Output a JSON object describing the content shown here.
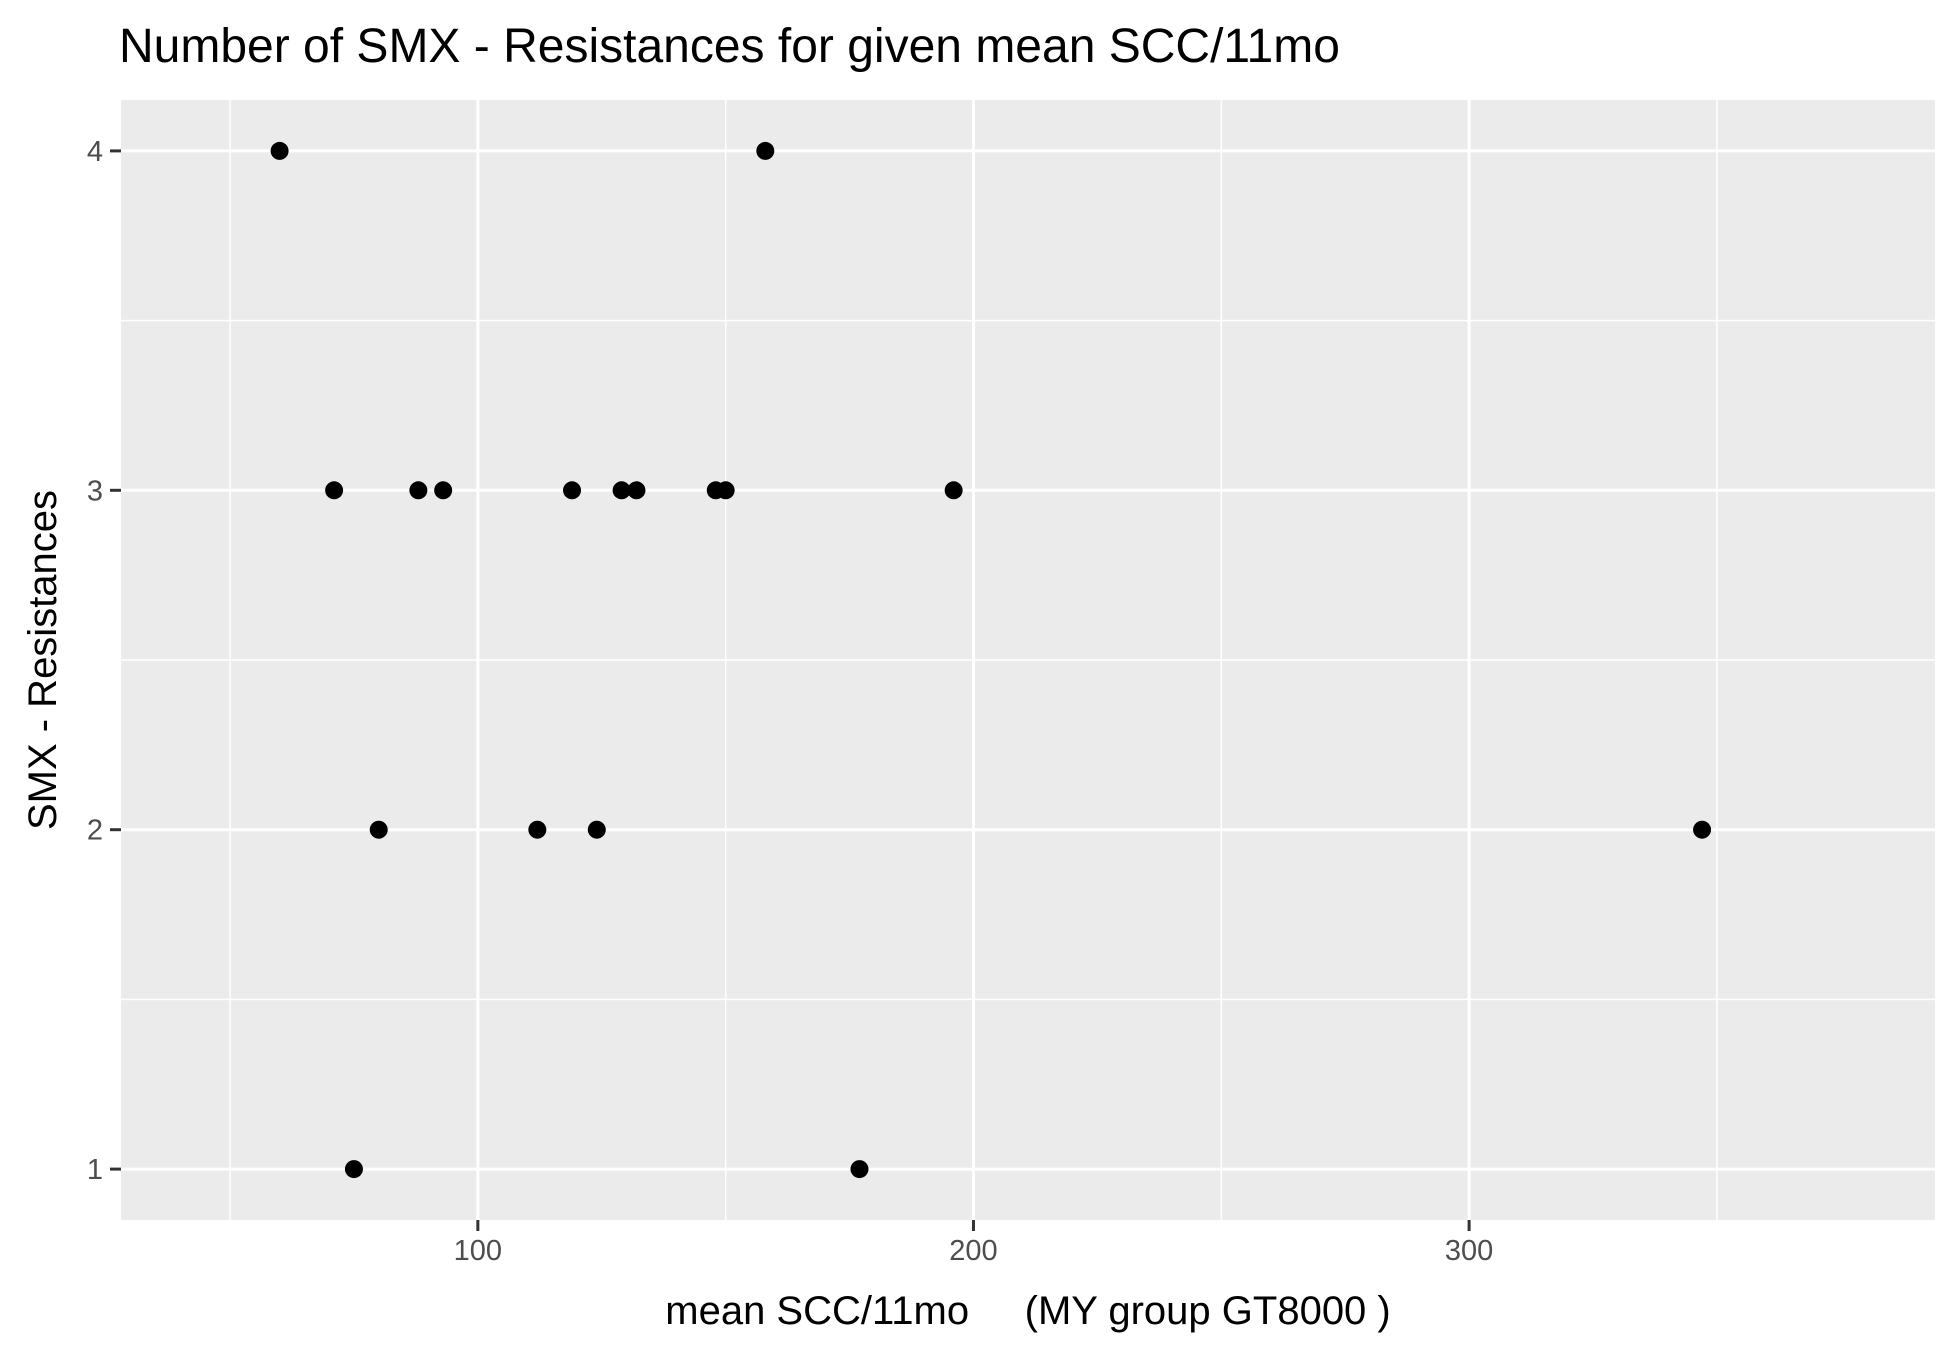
{
  "chart_data": {
    "type": "scatter",
    "title": "Number of SMX - Resistances for given mean SCC/11mo",
    "xlabel": "mean SCC/11mo     (MY group GT8000 )",
    "ylabel": "SMX - Resistances",
    "xlim": [
      28,
      394
    ],
    "ylim": [
      0.85,
      4.15
    ],
    "x_ticks": [
      100,
      200,
      300
    ],
    "x_tick_labels": [
      "100",
      "200",
      "300"
    ],
    "y_ticks": [
      1,
      2,
      3,
      4
    ],
    "y_tick_labels": [
      "1",
      "2",
      "3",
      "4"
    ],
    "grid": true,
    "legend": "none",
    "colors": {
      "panel": "#ebebeb",
      "grid": "#ffffff",
      "point": "#000000",
      "tick_text": "#4d4d4d",
      "tick_mark": "#333333"
    },
    "points": [
      {
        "x": 60,
        "y": 4
      },
      {
        "x": 158,
        "y": 4
      },
      {
        "x": 71,
        "y": 3
      },
      {
        "x": 88,
        "y": 3
      },
      {
        "x": 93,
        "y": 3
      },
      {
        "x": 119,
        "y": 3
      },
      {
        "x": 129,
        "y": 3
      },
      {
        "x": 132,
        "y": 3
      },
      {
        "x": 148,
        "y": 3
      },
      {
        "x": 150,
        "y": 3
      },
      {
        "x": 196,
        "y": 3
      },
      {
        "x": 80,
        "y": 2
      },
      {
        "x": 112,
        "y": 2
      },
      {
        "x": 124,
        "y": 2
      },
      {
        "x": 347,
        "y": 2
      },
      {
        "x": 75,
        "y": 1
      },
      {
        "x": 177,
        "y": 1
      }
    ]
  }
}
